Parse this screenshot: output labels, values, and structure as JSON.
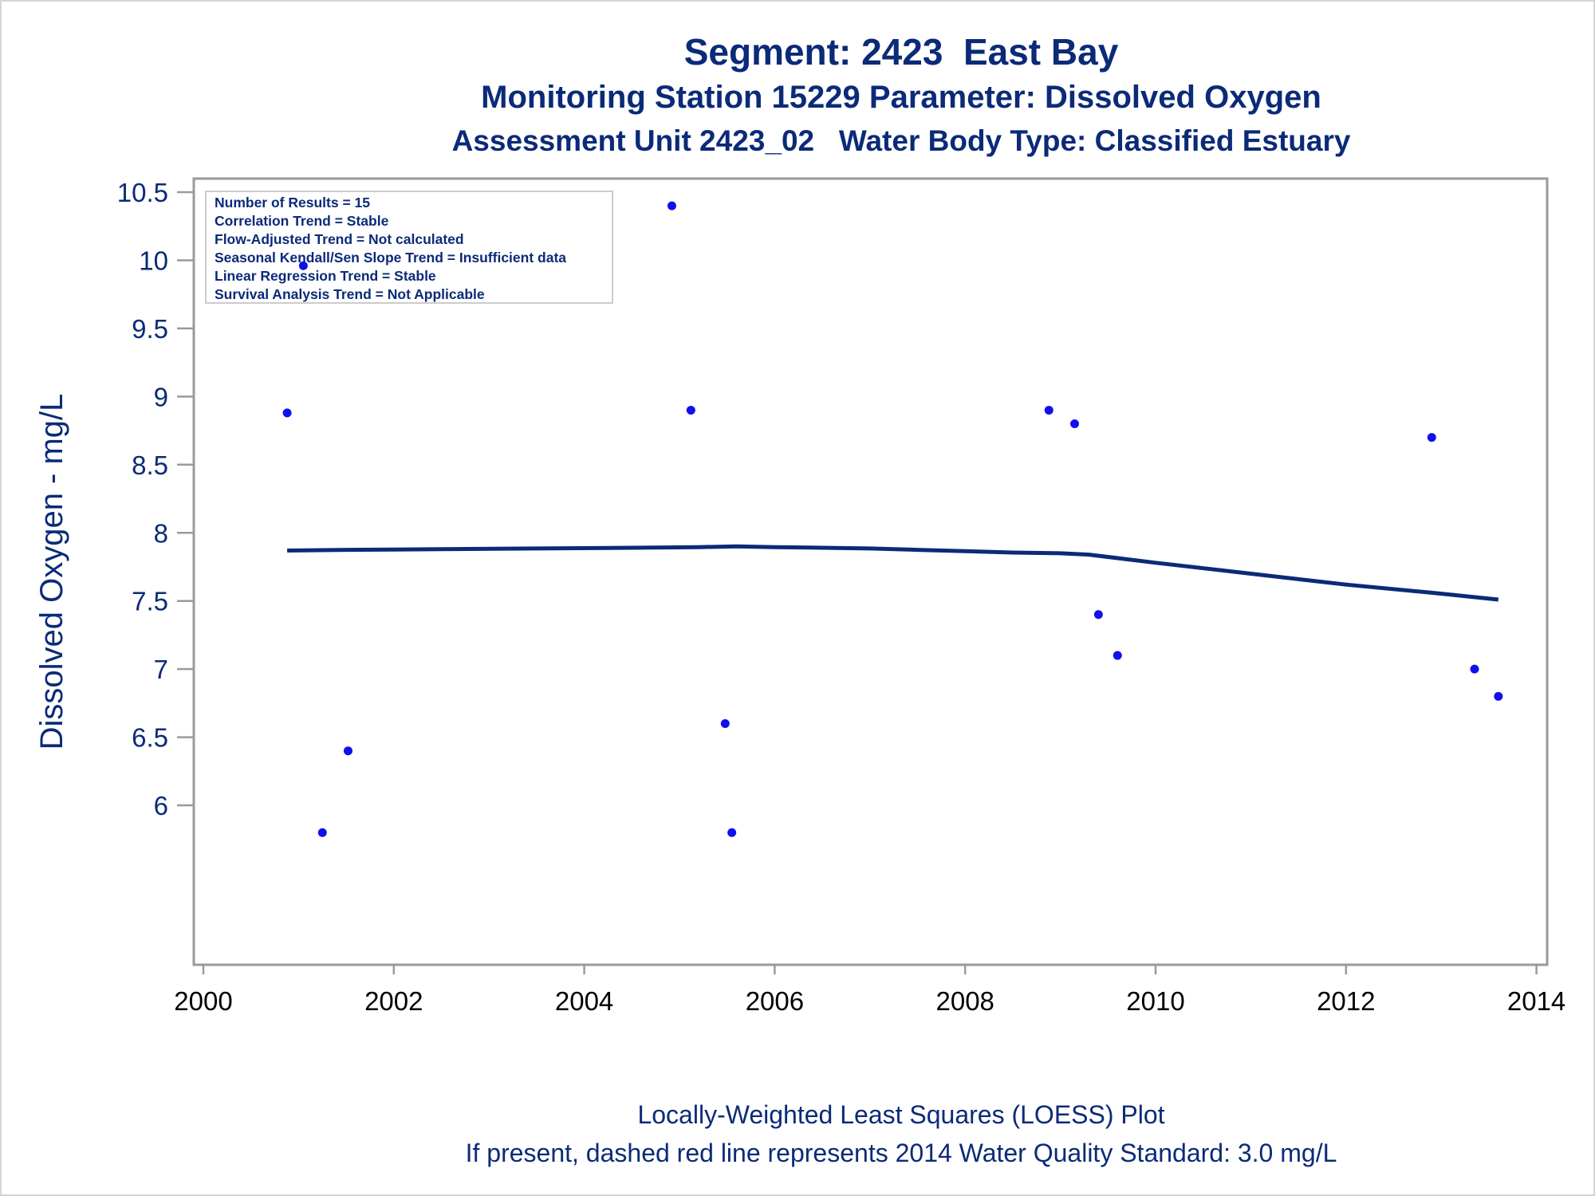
{
  "header": {
    "title": "Segment: 2423  East Bay",
    "subtitle_1": "Monitoring Station 15229 Parameter: Dissolved Oxygen",
    "subtitle_2": "Assessment Unit 2423_02   Water Body Type: Classified Estuary"
  },
  "stats_box": {
    "lines": [
      "Number of Results = 15",
      "Correlation Trend = Stable",
      "Flow-Adjusted Trend = Not calculated",
      "Seasonal Kendall/Sen Slope Trend = Insufficient data",
      "Linear Regression Trend = Stable",
      "Survival Analysis Trend = Not Applicable"
    ]
  },
  "footer": {
    "line_1": "Locally-Weighted Least Squares (LOESS) Plot",
    "line_2": "If present, dashed red line represents 2014 Water Quality Standard: 3.0 mg/L"
  },
  "colors": {
    "text": "#0b2a78",
    "points": "#1010ee",
    "loess_line": "#0b2a78",
    "frame": "#9a9a9a",
    "tick_label": "#000000"
  },
  "chart_data": {
    "type": "scatter",
    "ylabel": "Dissolved Oxygen - mg/L",
    "xlabel": "",
    "xlim": [
      2000,
      2014
    ],
    "ylim": [
      5.85,
      10.55
    ],
    "x_ticks": [
      2000,
      2002,
      2004,
      2006,
      2008,
      2010,
      2012,
      2014
    ],
    "y_ticks": [
      6,
      6.5,
      7,
      7.5,
      8,
      8.5,
      9,
      9.5,
      10,
      10.5
    ],
    "y_tick_labels": [
      "6",
      "6.5",
      "7",
      "7.5",
      "8",
      "8.5",
      "9",
      "9.5",
      "10",
      "10.5"
    ],
    "grid": false,
    "points": [
      {
        "x": 2000.88,
        "y": 8.88
      },
      {
        "x": 2001.05,
        "y": 9.96
      },
      {
        "x": 2001.25,
        "y": 5.8
      },
      {
        "x": 2001.52,
        "y": 6.4
      },
      {
        "x": 2004.92,
        "y": 10.4
      },
      {
        "x": 2005.12,
        "y": 8.9
      },
      {
        "x": 2005.48,
        "y": 6.6
      },
      {
        "x": 2005.55,
        "y": 5.8
      },
      {
        "x": 2008.88,
        "y": 8.9
      },
      {
        "x": 2009.15,
        "y": 8.8
      },
      {
        "x": 2009.4,
        "y": 7.4
      },
      {
        "x": 2009.6,
        "y": 7.1
      },
      {
        "x": 2012.9,
        "y": 8.7
      },
      {
        "x": 2013.35,
        "y": 7.0
      },
      {
        "x": 2013.6,
        "y": 6.8
      }
    ],
    "series": [
      {
        "x": [
          2000.88,
          2001.5,
          2002.5,
          2003.5,
          2004.5,
          2005.2,
          2005.6,
          2006.0,
          2006.5,
          2007.0,
          2007.5,
          2008.0,
          2008.5,
          2009.0,
          2009.3,
          2010.0,
          2011.0,
          2012.0,
          2012.9,
          2013.6
        ],
        "y": [
          7.87,
          7.875,
          7.88,
          7.885,
          7.89,
          7.895,
          7.9,
          7.895,
          7.89,
          7.885,
          7.875,
          7.865,
          7.855,
          7.85,
          7.84,
          7.78,
          7.7,
          7.62,
          7.56,
          7.51
        ]
      }
    ]
  }
}
